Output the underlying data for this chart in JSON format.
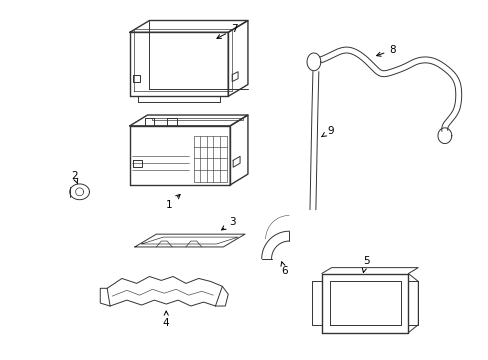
{
  "background_color": "#ffffff",
  "line_color": "#333333",
  "lw": 1.0,
  "tlw": 0.7,
  "fig_width": 4.89,
  "fig_height": 3.6,
  "dpi": 100
}
